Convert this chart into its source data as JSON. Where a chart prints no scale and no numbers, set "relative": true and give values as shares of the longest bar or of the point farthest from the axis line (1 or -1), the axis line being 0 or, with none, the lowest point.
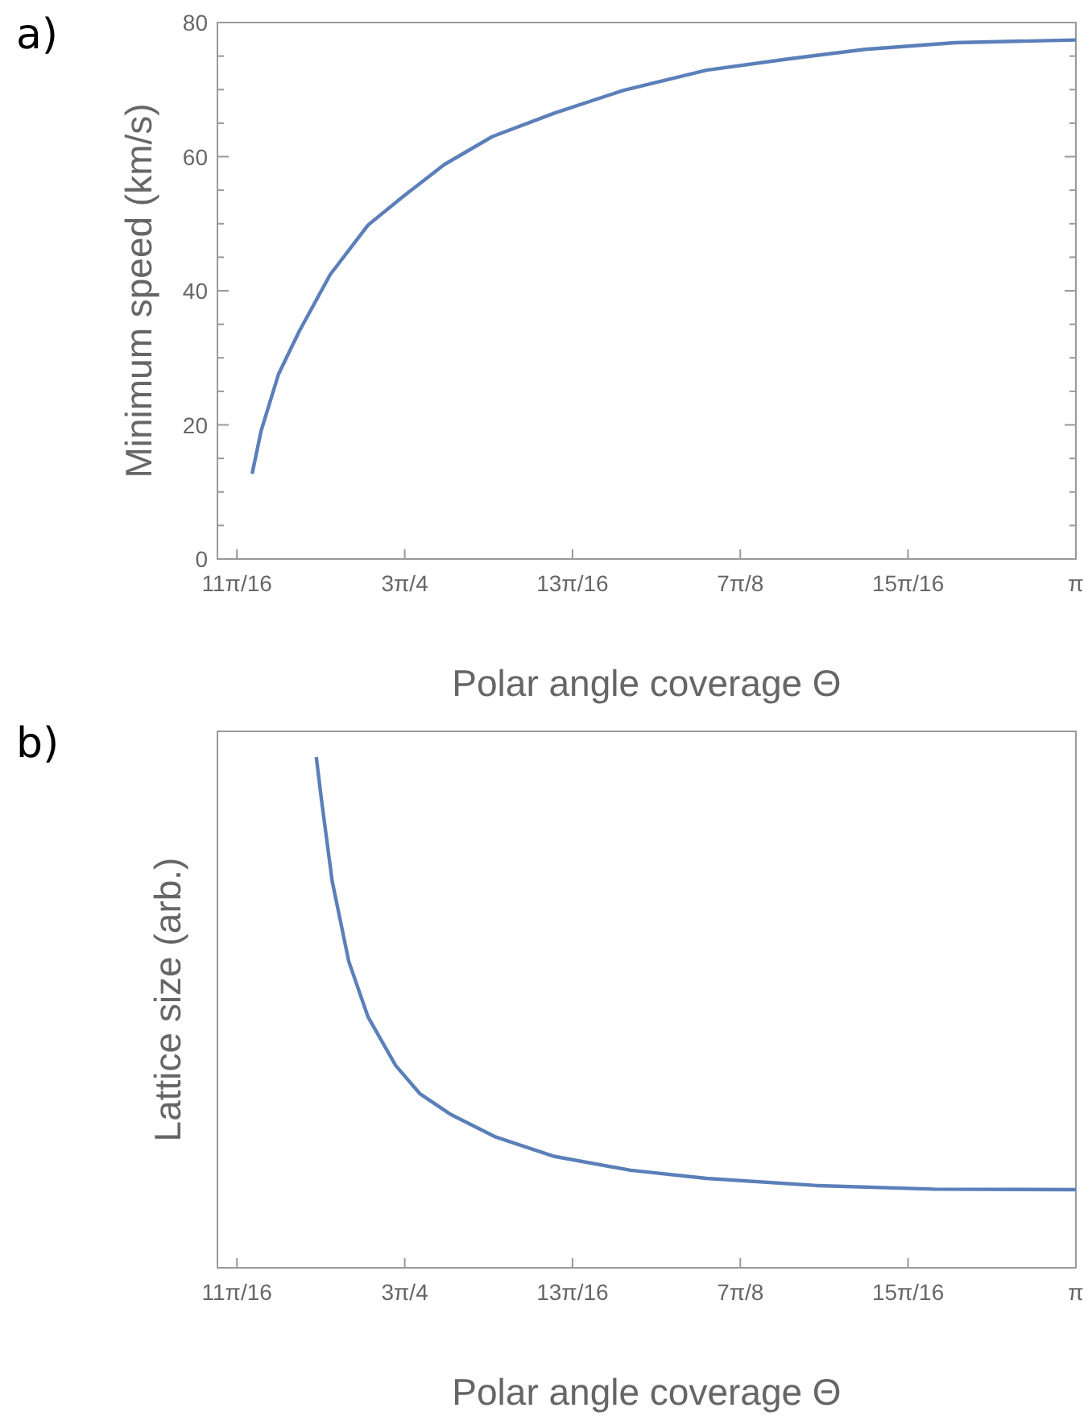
{
  "chart_data": [
    {
      "type": "line",
      "annotations": [
        "a)"
      ],
      "xlabel": "Polar angle coverage Θ",
      "ylabel": "Minimum speed (km/s)",
      "xlim": [
        2.137,
        3.1416
      ],
      "xticks": [
        {
          "value": 2.1598,
          "label": "11π/16"
        },
        {
          "value": 2.3562,
          "label": "3π/4"
        },
        {
          "value": 2.5525,
          "label": "13π/16"
        },
        {
          "value": 2.7489,
          "label": "7π/8"
        },
        {
          "value": 2.9452,
          "label": "15π/16"
        },
        {
          "value": 3.1416,
          "label": "π"
        }
      ],
      "ylim": [
        0,
        80
      ],
      "yticks": [
        0,
        {
          "value": 5,
          "label": null
        },
        {
          "value": 10,
          "label": null
        },
        {
          "value": 15,
          "label": null
        },
        20,
        {
          "value": 25,
          "label": null
        },
        {
          "value": 30,
          "label": null
        },
        {
          "value": 35,
          "label": null
        },
        40,
        {
          "value": 45,
          "label": null
        },
        {
          "value": 50,
          "label": null
        },
        {
          "value": 55,
          "label": null
        },
        60,
        {
          "value": 65,
          "label": null
        },
        {
          "value": 70,
          "label": null
        },
        {
          "value": 75,
          "label": null
        },
        80
      ],
      "grid": false,
      "series": [
        {
          "color": "#5b7fb9",
          "x": [
            2.1776,
            2.1881,
            2.2083,
            2.2325,
            2.2689,
            2.3133,
            2.3537,
            2.4022,
            2.4588,
            2.5315,
            2.6123,
            2.7093,
            2.8063,
            2.8951,
            3.0002,
            3.1416
          ],
          "values": [
            12.7,
            19.1,
            27.5,
            33.9,
            42.4,
            49.8,
            54.0,
            58.8,
            63.0,
            66.5,
            69.9,
            72.9,
            74.6,
            76.0,
            77.0,
            77.4
          ]
        }
      ]
    },
    {
      "type": "line",
      "annotations": [
        "b)"
      ],
      "xlabel": "Polar angle coverage Θ",
      "ylabel": "Lattice size (arb.)",
      "relative": true,
      "xlim": [
        2.137,
        3.1416
      ],
      "xticks": [
        {
          "value": 2.1598,
          "label": "11π/16"
        },
        {
          "value": 2.3562,
          "label": "3π/4"
        },
        {
          "value": 2.5525,
          "label": "13π/16"
        },
        {
          "value": 2.7489,
          "label": "7π/8"
        },
        {
          "value": 2.9452,
          "label": "15π/16"
        },
        {
          "value": 3.1416,
          "label": "π"
        }
      ],
      "grid": false,
      "series": [
        {
          "color": "#5b7fb9",
          "x": [
            2.2527,
            2.2584,
            2.2713,
            2.2907,
            2.3133,
            2.3456,
            2.3739,
            2.4103,
            2.4628,
            2.5315,
            2.6204,
            2.7093,
            2.8386,
            2.976,
            3.1416
          ],
          "values": [
            1,
            0.921,
            0.757,
            0.6,
            0.491,
            0.396,
            0.341,
            0.3,
            0.256,
            0.218,
            0.191,
            0.175,
            0.161,
            0.154,
            0.153
          ]
        }
      ]
    }
  ]
}
